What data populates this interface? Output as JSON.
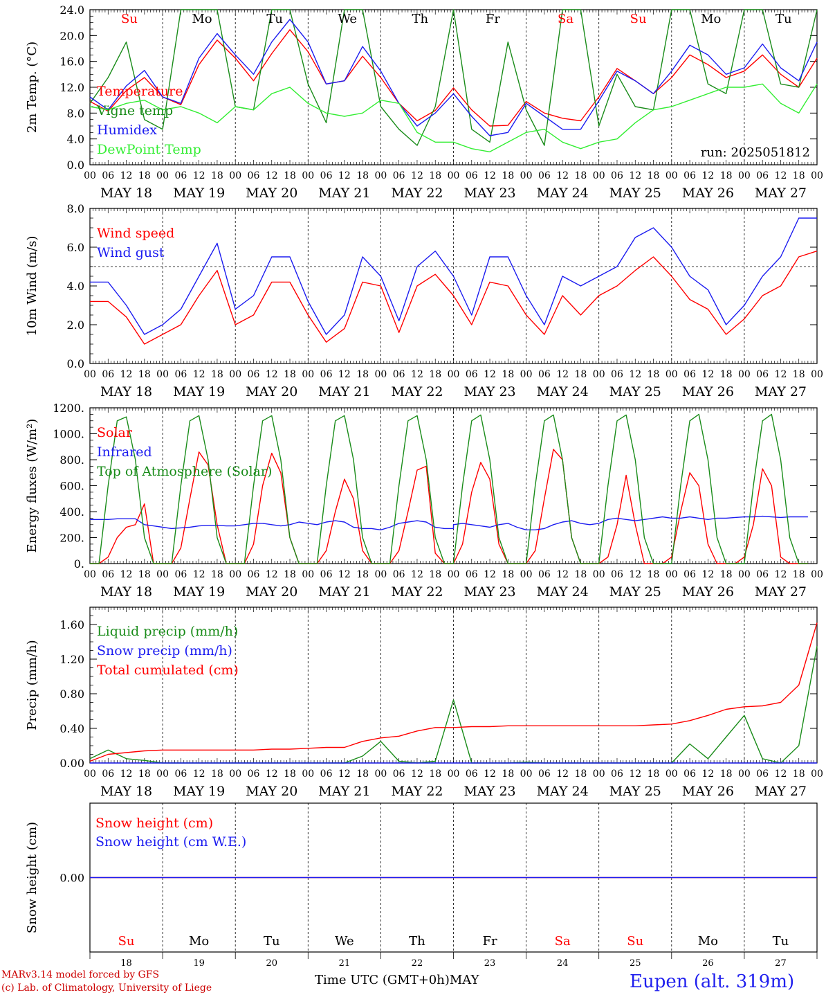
{
  "footer": {
    "credit_line1": "MARv3.14 model forced by GFS",
    "credit_line2": "(c) Lab. of Climatology, University of Liege",
    "x_axis_title": "Time UTC (GMT+0h)",
    "month": "MAY",
    "station": "Eupen (alt. 319m)"
  },
  "days": {
    "weekdays": [
      "Su",
      "Mo",
      "Tu",
      "We",
      "Th",
      "Fr",
      "Sa",
      "Su",
      "Mo",
      "Tu"
    ],
    "weekend_flags": [
      true,
      false,
      false,
      false,
      false,
      false,
      true,
      true,
      false,
      false
    ],
    "date_labels": [
      "MAY 18",
      "MAY 19",
      "MAY 20",
      "MAY 21",
      "MAY 22",
      "MAY 23",
      "MAY 24",
      "MAY 25",
      "MAY 26",
      "MAY 27"
    ],
    "day_numbers": [
      "18",
      "19",
      "20",
      "21",
      "22",
      "23",
      "24",
      "25",
      "26",
      "27"
    ],
    "hour_labels": [
      "00",
      "06",
      "12",
      "18"
    ],
    "final_hour_label": "00"
  },
  "colors": {
    "red": "#ff0000",
    "green": "#1a8c1a",
    "blue": "#1c1cf0",
    "lightgreen": "#33ee33",
    "grid": "#000000"
  },
  "chart_data": [
    {
      "type": "line",
      "ylabel": "2m Temp. (°C)",
      "ylim": [
        0,
        24
      ],
      "yticks": [
        "0.0",
        "4.0",
        "8.0",
        "12.0",
        "16.0",
        "20.0",
        "24.0"
      ],
      "ytick_values": [
        0,
        4,
        8,
        12,
        16,
        20,
        24
      ],
      "annotation": "run: 2025051812",
      "show_weekdays": true,
      "x_hours": [
        0,
        6,
        12,
        18,
        24,
        30,
        36,
        42,
        48,
        54,
        60,
        66,
        72,
        78,
        84,
        90,
        96,
        102,
        108,
        114,
        120,
        126,
        132,
        138,
        144,
        150,
        156,
        162,
        168,
        174,
        180,
        186,
        192,
        198,
        204,
        210,
        216,
        222,
        228,
        234,
        240
      ],
      "series": [
        {
          "name": "Temperature",
          "color": "red",
          "values": [
            9.8,
            8.3,
            11.5,
            13.5,
            10.5,
            9.3,
            15.5,
            19.3,
            16.5,
            13.0,
            17.2,
            20.9,
            17.5,
            12.5,
            13.0,
            16.8,
            13.5,
            9.5,
            6.8,
            8.4,
            11.9,
            8.5,
            6.0,
            6.1,
            9.8,
            8.0,
            7.2,
            6.8,
            10.5,
            14.9,
            13.0,
            11.0,
            13.5,
            17.0,
            15.5,
            13.5,
            14.5,
            17.0,
            14.0,
            12.0,
            16.5
          ]
        },
        {
          "name": "Vigne temp",
          "color": "green",
          "values": [
            9.5,
            13.5,
            19.0,
            7.0,
            5.5,
            24.0,
            24.0,
            24.0,
            9.0,
            8.5,
            24.0,
            24.0,
            12.5,
            6.5,
            24.0,
            24.0,
            9.0,
            5.5,
            3.0,
            9.0,
            24.0,
            5.5,
            3.5,
            19.0,
            8.5,
            3.0,
            24.0,
            24.0,
            6.0,
            14.0,
            9.0,
            8.5,
            24.0,
            24.0,
            12.5,
            11.0,
            24.0,
            24.0,
            12.5,
            12.0,
            24.0
          ]
        },
        {
          "name": "Humidex",
          "color": "blue",
          "values": [
            10.5,
            8.5,
            12.2,
            14.6,
            10.5,
            9.5,
            16.5,
            20.3,
            17.0,
            14.0,
            19.0,
            22.5,
            19.0,
            12.5,
            13.0,
            18.3,
            14.5,
            9.5,
            6.0,
            8.0,
            11.0,
            7.5,
            4.5,
            5.0,
            9.5,
            7.5,
            5.5,
            5.5,
            9.9,
            14.5,
            13.0,
            11.0,
            14.5,
            18.5,
            17.0,
            14.0,
            15.0,
            18.7,
            15.0,
            13.0,
            19.0
          ]
        },
        {
          "name": "DewPoint Temp",
          "color": "lightgreen",
          "values": [
            9.0,
            8.5,
            9.5,
            10.0,
            8.5,
            9.0,
            8.0,
            6.5,
            9.0,
            8.5,
            11.0,
            12.0,
            9.5,
            8.0,
            7.5,
            8.0,
            10.0,
            9.5,
            5.0,
            3.5,
            3.5,
            2.5,
            2.0,
            3.5,
            5.0,
            5.5,
            3.5,
            2.5,
            3.5,
            4.0,
            6.5,
            8.5,
            9.0,
            10.0,
            11.0,
            12.0,
            12.0,
            12.5,
            9.5,
            8.0,
            12.5
          ]
        }
      ]
    },
    {
      "type": "line",
      "ylabel": "10m Wind (m/s)",
      "ylim": [
        0,
        8
      ],
      "yticks": [
        "0.0",
        "2.0",
        "4.0",
        "6.0",
        "8.0"
      ],
      "ytick_values": [
        0,
        2,
        4,
        6,
        8
      ],
      "reference_line": 5,
      "x_hours": [
        0,
        6,
        12,
        18,
        24,
        30,
        36,
        42,
        48,
        54,
        60,
        66,
        72,
        78,
        84,
        90,
        96,
        102,
        108,
        114,
        120,
        126,
        132,
        138,
        144,
        150,
        156,
        162,
        168,
        174,
        180,
        186,
        192,
        198,
        204,
        210,
        216,
        222,
        228,
        234,
        240
      ],
      "series": [
        {
          "name": "Wind speed",
          "color": "red",
          "values": [
            3.2,
            3.2,
            2.4,
            1.0,
            1.5,
            2.0,
            3.5,
            4.8,
            2.0,
            2.5,
            4.2,
            4.2,
            2.5,
            1.1,
            1.8,
            4.2,
            4.0,
            1.6,
            4.0,
            4.6,
            3.5,
            2.0,
            4.2,
            4.0,
            2.5,
            1.5,
            3.5,
            2.5,
            3.5,
            4.0,
            4.8,
            5.5,
            4.5,
            3.3,
            2.8,
            1.5,
            2.3,
            3.5,
            4.0,
            5.5,
            5.8
          ]
        },
        {
          "name": "Wind gust",
          "color": "blue",
          "values": [
            4.2,
            4.2,
            3.0,
            1.5,
            2.0,
            2.8,
            4.5,
            6.2,
            2.8,
            3.5,
            5.5,
            5.5,
            3.2,
            1.5,
            2.5,
            5.5,
            4.5,
            2.2,
            5.0,
            5.8,
            4.5,
            2.5,
            5.5,
            5.5,
            3.5,
            2.0,
            4.5,
            4.0,
            4.5,
            5.0,
            6.5,
            7.0,
            6.0,
            4.5,
            3.8,
            2.0,
            3.0,
            4.5,
            5.5,
            7.5,
            7.5
          ]
        }
      ]
    },
    {
      "type": "line",
      "ylabel": "Energy fluxes (W/m²)",
      "ylim": [
        0,
        1200
      ],
      "yticks": [
        "0.",
        "200.",
        "400.",
        "600.",
        "800.",
        "1000.",
        "1200."
      ],
      "ytick_values": [
        0,
        200,
        400,
        600,
        800,
        1000,
        1200
      ],
      "x_hours": [
        0,
        3,
        6,
        9,
        12,
        15,
        18,
        21,
        24,
        27,
        30,
        33,
        36,
        39,
        42,
        45,
        48,
        51,
        54,
        57,
        60,
        63,
        66,
        69,
        72,
        75,
        78,
        81,
        84,
        87,
        90,
        93,
        96,
        99,
        102,
        105,
        108,
        111,
        114,
        117,
        120,
        120,
        123,
        126,
        129,
        132,
        135,
        138,
        141,
        144,
        147,
        150,
        153,
        156,
        159,
        162,
        165,
        168,
        171,
        174,
        177,
        180,
        183,
        186,
        189,
        192,
        195,
        198,
        201,
        204,
        207,
        210,
        213,
        216,
        219,
        222,
        225,
        228,
        231,
        234,
        237,
        240
      ],
      "series": [
        {
          "name": "Solar",
          "color": "red",
          "values": [
            0,
            0,
            50,
            200,
            280,
            300,
            460,
            0,
            0,
            0,
            120,
            500,
            860,
            760,
            300,
            0,
            0,
            0,
            150,
            600,
            850,
            700,
            200,
            0,
            0,
            0,
            100,
            400,
            650,
            500,
            100,
            0,
            0,
            0,
            100,
            400,
            720,
            750,
            80,
            0,
            0,
            0,
            150,
            550,
            780,
            650,
            150,
            0,
            0,
            0,
            100,
            500,
            880,
            800,
            200,
            0,
            0,
            0,
            50,
            300,
            680,
            300,
            0,
            0,
            0,
            50,
            400,
            700,
            600,
            150,
            0,
            0,
            0,
            50,
            300,
            730,
            600,
            50,
            0,
            0,
            0
          ]
        },
        {
          "name": "Infrared",
          "color": "blue",
          "values": [
            340,
            340,
            340,
            345,
            345,
            345,
            300,
            290,
            280,
            270,
            275,
            280,
            290,
            295,
            295,
            290,
            290,
            300,
            310,
            310,
            300,
            290,
            300,
            320,
            310,
            300,
            320,
            330,
            320,
            280,
            270,
            270,
            260,
            280,
            310,
            320,
            330,
            320,
            280,
            270,
            270,
            300,
            310,
            300,
            290,
            280,
            300,
            310,
            280,
            260,
            260,
            270,
            300,
            320,
            330,
            310,
            300,
            310,
            340,
            350,
            340,
            330,
            340,
            350,
            360,
            350,
            350,
            360,
            350,
            340,
            350,
            350,
            355,
            360,
            360,
            365,
            360,
            355,
            360,
            360,
            360
          ]
        },
        {
          "name": "Top of Atmosphere (Solar)",
          "color": "green",
          "values": [
            0,
            0,
            600,
            1100,
            1130,
            800,
            200,
            0,
            0,
            0,
            600,
            1100,
            1140,
            800,
            200,
            0,
            0,
            0,
            600,
            1100,
            1140,
            800,
            200,
            0,
            0,
            0,
            600,
            1100,
            1140,
            800,
            200,
            0,
            0,
            0,
            600,
            1100,
            1140,
            800,
            200,
            0,
            0,
            0,
            600,
            1100,
            1145,
            800,
            200,
            0,
            0,
            0,
            600,
            1100,
            1145,
            800,
            200,
            0,
            0,
            0,
            600,
            1100,
            1145,
            800,
            200,
            0,
            0,
            0,
            600,
            1100,
            1150,
            800,
            200,
            0,
            0,
            0,
            600,
            1100,
            1150,
            800,
            200,
            0,
            0
          ]
        }
      ]
    },
    {
      "type": "line",
      "ylabel": "Precip (mm/h)",
      "ylim": [
        0,
        1.8
      ],
      "yticks": [
        "0.00",
        "0.40",
        "0.80",
        "1.20",
        "1.60"
      ],
      "ytick_values": [
        0,
        0.4,
        0.8,
        1.2,
        1.6
      ],
      "x_hours": [
        0,
        6,
        12,
        18,
        24,
        30,
        36,
        42,
        48,
        54,
        60,
        66,
        72,
        78,
        84,
        90,
        96,
        102,
        108,
        114,
        120,
        126,
        132,
        138,
        144,
        150,
        156,
        162,
        168,
        174,
        180,
        186,
        192,
        198,
        204,
        210,
        216,
        222,
        228,
        234,
        240
      ],
      "series": [
        {
          "name": "Liquid precip (mm/h)",
          "color": "green",
          "values": [
            0.05,
            0.15,
            0.05,
            0.03,
            0,
            0,
            0,
            0,
            0,
            0,
            0,
            0,
            0,
            0,
            0,
            0.08,
            0.25,
            0.02,
            0,
            0.02,
            0.73,
            0,
            0,
            0,
            0.01,
            0,
            0,
            0,
            0,
            0,
            0,
            0,
            0,
            0.22,
            0.05,
            0.3,
            0.55,
            0.05,
            0,
            0.2,
            1.35
          ]
        },
        {
          "name": "Snow precip (mm/h)",
          "color": "blue",
          "values": [
            0,
            0,
            0,
            0,
            0,
            0,
            0,
            0,
            0,
            0,
            0,
            0,
            0,
            0,
            0,
            0,
            0,
            0,
            0,
            0,
            0,
            0,
            0,
            0,
            0,
            0,
            0,
            0,
            0,
            0,
            0,
            0,
            0,
            0,
            0,
            0,
            0,
            0,
            0,
            0,
            0
          ]
        },
        {
          "name": "Total cumulated (cm)",
          "color": "red",
          "values": [
            0.02,
            0.1,
            0.12,
            0.14,
            0.15,
            0.15,
            0.15,
            0.15,
            0.15,
            0.15,
            0.16,
            0.16,
            0.17,
            0.18,
            0.18,
            0.25,
            0.29,
            0.31,
            0.37,
            0.41,
            0.41,
            0.42,
            0.42,
            0.43,
            0.43,
            0.43,
            0.43,
            0.43,
            0.43,
            0.43,
            0.43,
            0.44,
            0.45,
            0.49,
            0.55,
            0.62,
            0.65,
            0.66,
            0.7,
            0.9,
            1.62
          ]
        }
      ]
    },
    {
      "type": "line",
      "ylabel": "Snow height (cm)",
      "ylim": [
        -1,
        1
      ],
      "yticks": [
        "0.00"
      ],
      "ytick_values": [
        0
      ],
      "show_weekdays_bottom": true,
      "x_hours": [
        0,
        240
      ],
      "series": [
        {
          "name": "Snow height (cm)",
          "color": "red",
          "values": [
            0,
            0
          ]
        },
        {
          "name": "Snow height (cm W.E.)",
          "color": "blue",
          "values": [
            0,
            0
          ]
        }
      ]
    }
  ]
}
